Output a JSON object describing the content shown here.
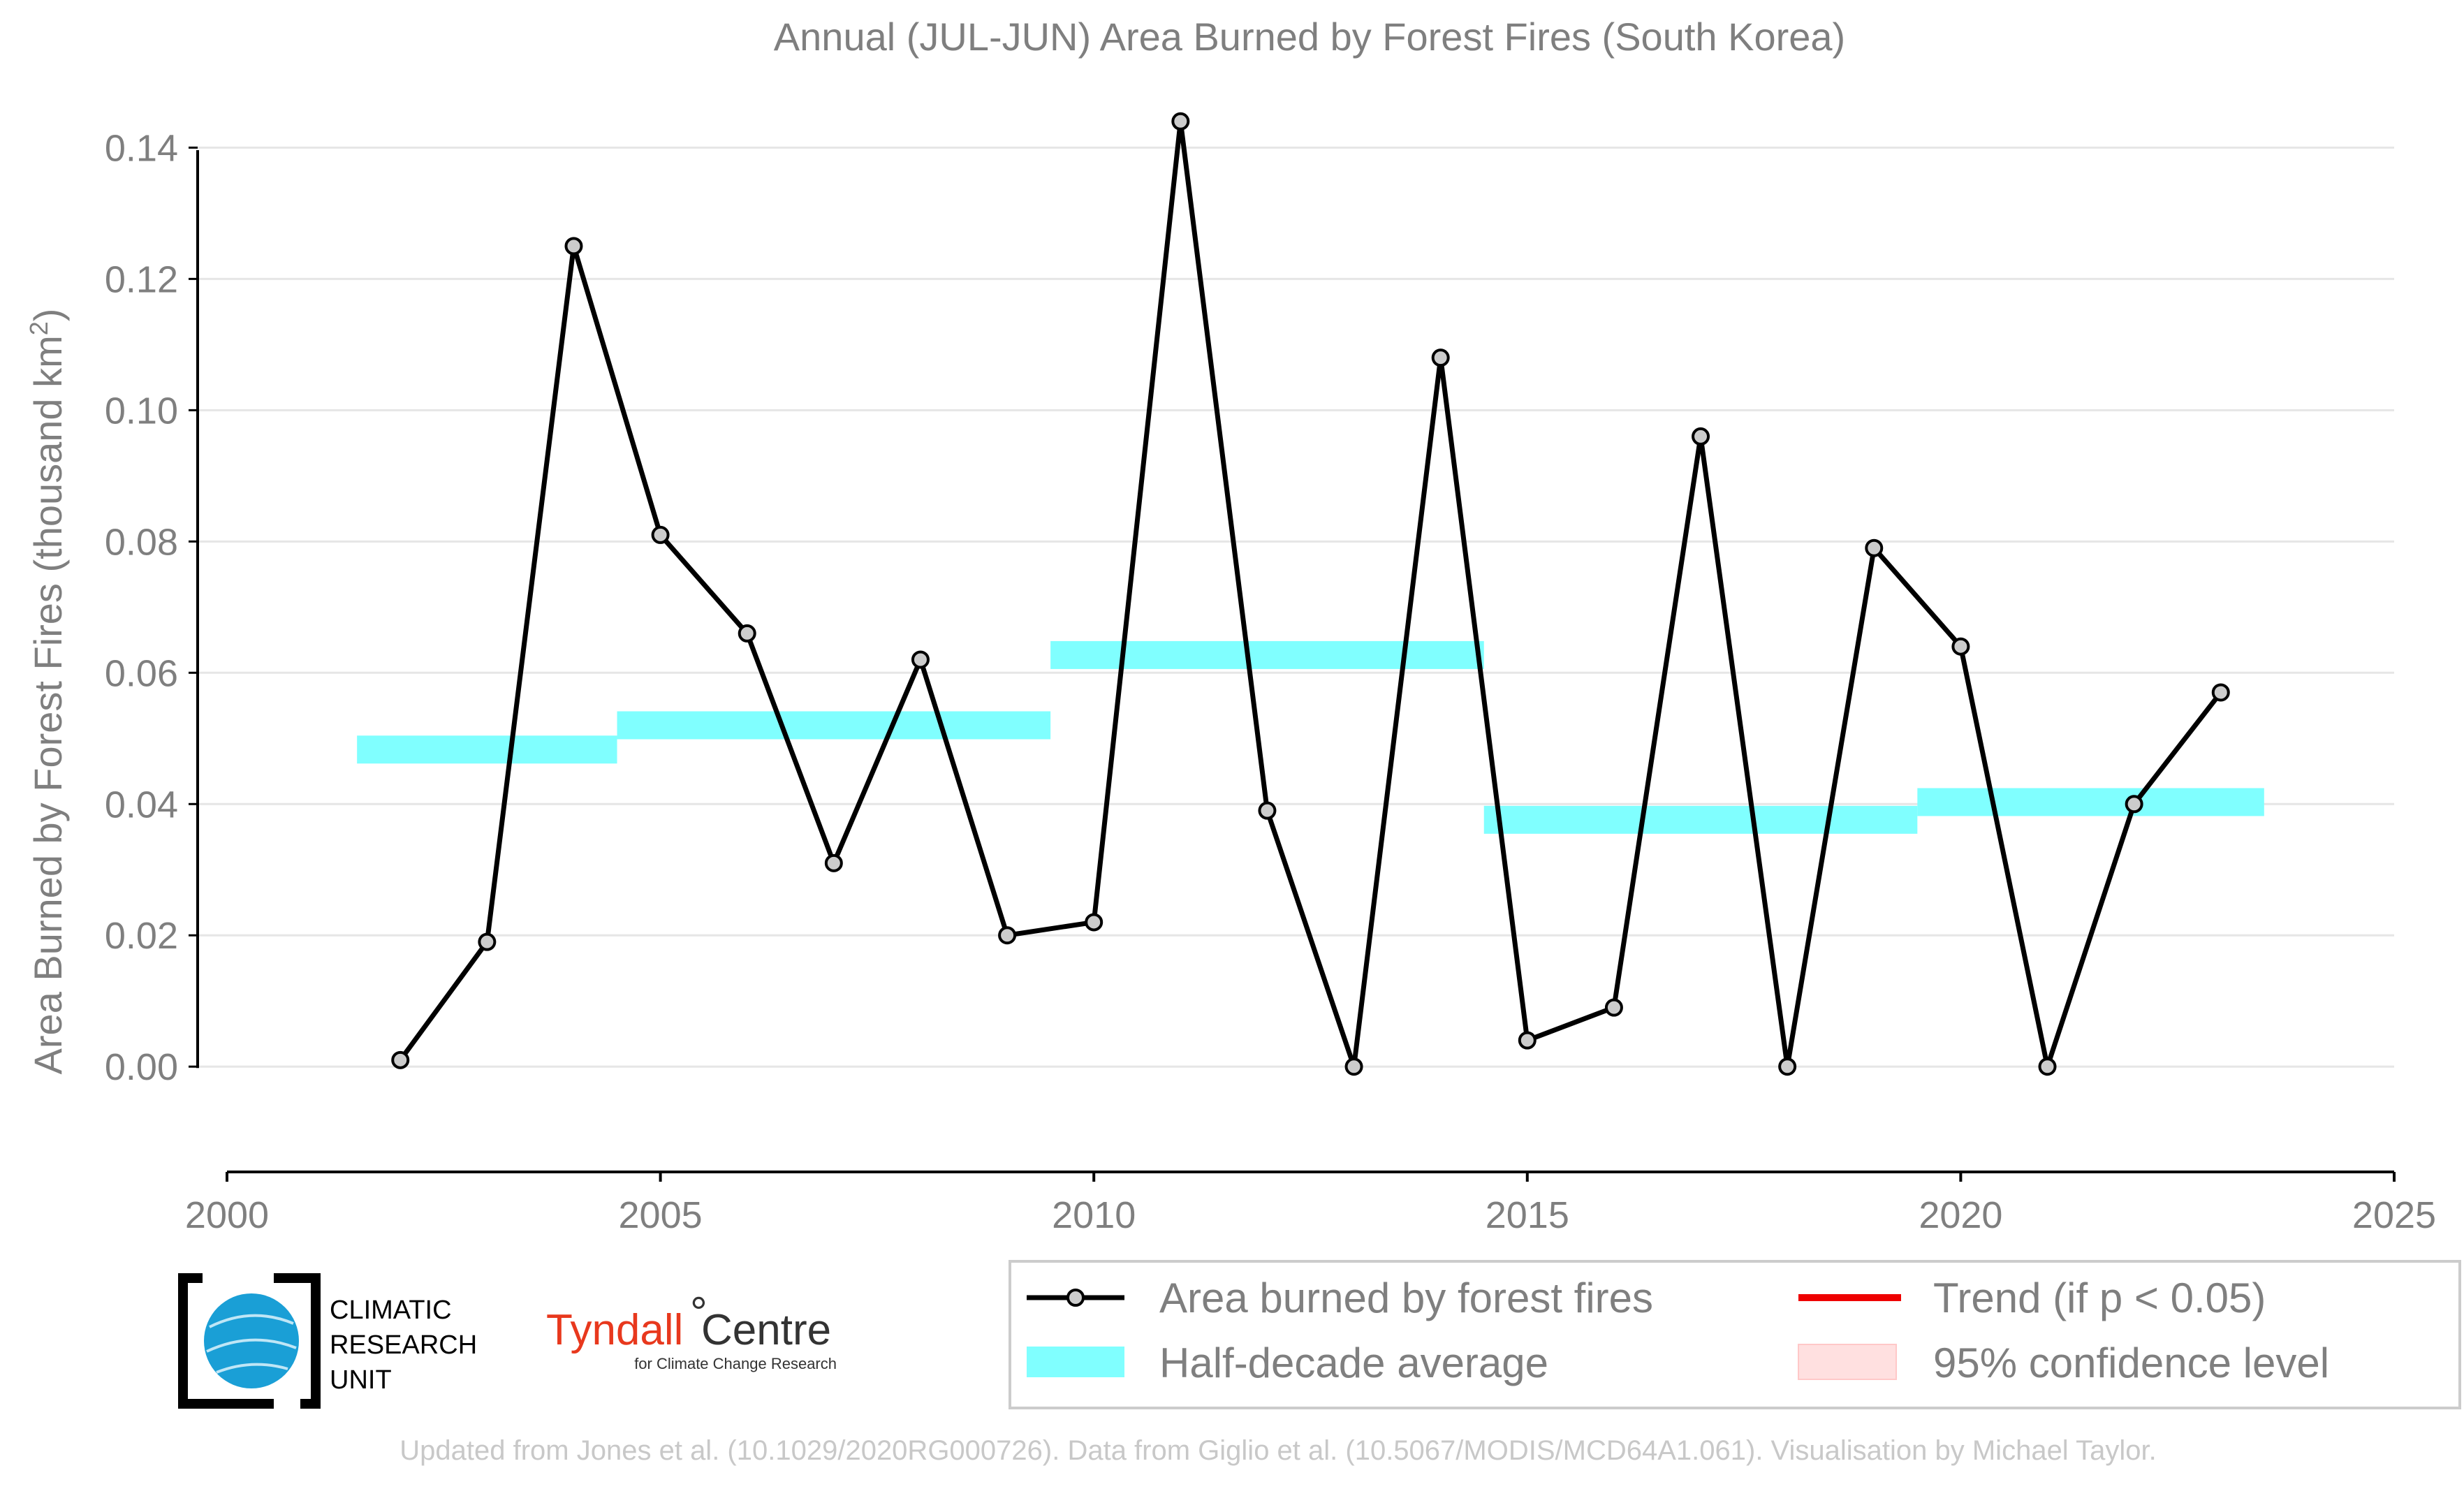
{
  "chart_data": {
    "type": "line",
    "title": "Annual (JUL-JUN) Area Burned by Forest Fires (South Korea)",
    "ylabel_main": "Area Burned by Forest Fires (thousand km",
    "ylabel_sup": "2",
    "ylabel_close": ")",
    "xlim": [
      2000,
      2025
    ],
    "ylim": [
      -0.012,
      0.146
    ],
    "x_ticks": [
      "2000",
      "2005",
      "2010",
      "2015",
      "2020",
      "2025"
    ],
    "y_ticks": [
      "0.00",
      "0.02",
      "0.04",
      "0.06",
      "0.08",
      "0.10",
      "0.12",
      "0.14"
    ],
    "grid": "horizontal",
    "series": [
      {
        "name": "Area burned by forest fires",
        "color": "#000000",
        "marker_fill": "#cccccc",
        "x": [
          2002,
          2003,
          2004,
          2005,
          2006,
          2007,
          2008,
          2009,
          2010,
          2011,
          2012,
          2013,
          2014,
          2015,
          2016,
          2017,
          2018,
          2019,
          2020,
          2021,
          2022,
          2023
        ],
        "y": [
          0.001,
          0.019,
          0.125,
          0.081,
          0.066,
          0.031,
          0.062,
          0.02,
          0.022,
          0.144,
          0.039,
          0.0,
          0.108,
          0.004,
          0.009,
          0.096,
          0.0,
          0.079,
          0.064,
          0.0,
          0.04,
          0.057
        ]
      },
      {
        "name": "Half-decade average",
        "color": "#80ffff",
        "segments": [
          {
            "x0": 2001.5,
            "x1": 2004.5,
            "y": 0.0483
          },
          {
            "x0": 2004.5,
            "x1": 2009.5,
            "y": 0.052
          },
          {
            "x0": 2009.5,
            "x1": 2014.5,
            "y": 0.0627
          },
          {
            "x0": 2014.5,
            "x1": 2019.5,
            "y": 0.0376
          },
          {
            "x0": 2019.5,
            "x1": 2023.5,
            "y": 0.0403
          }
        ]
      }
    ],
    "legend": {
      "placement": "bottom-right",
      "entries": [
        {
          "label": "Area burned by forest fires",
          "kind": "line-marker",
          "color": "#000000"
        },
        {
          "label": "Trend (if p < 0.05)",
          "kind": "line",
          "color": "#ee0000"
        },
        {
          "label": "Half-decade average",
          "kind": "band",
          "color": "#80ffff"
        },
        {
          "label": "95% confidence level",
          "kind": "band",
          "color": "#ffe0e0"
        }
      ]
    }
  },
  "logos": {
    "cru_lines": [
      "CLIMATIC",
      "RESEARCH",
      "UNIT"
    ],
    "tyndall_name": "Tyndall",
    "tyndall_degree": "°",
    "tyndall_centre": "Centre",
    "tyndall_sub": "for Climate Change Research"
  },
  "footer": "Updated from Jones et al. (10.1029/2020RG000726). Data from Giglio et al. (10.5067/MODIS/MCD64A1.061). Visualisation by Michael Taylor."
}
